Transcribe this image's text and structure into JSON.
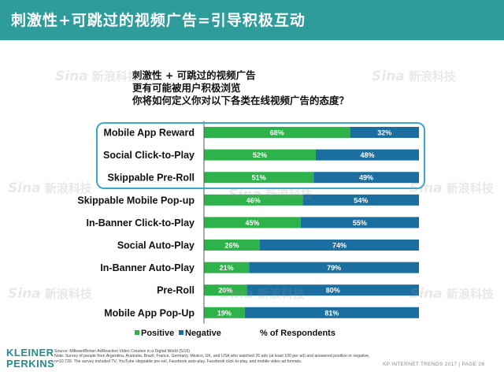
{
  "header": {
    "title": "刺激性+可跳过的视频广告=引导积极互动"
  },
  "question": {
    "lines": [
      "刺激性  +  可跳过的视频广告",
      "更有可能被用户积极浏览",
      "你将如何定义你对以下各类在线视频广告的态度？"
    ]
  },
  "chart_data": {
    "type": "bar",
    "orientation": "horizontal",
    "stacked": true,
    "categories": [
      "Mobile App Reward",
      "Social Click-to-Play",
      "Skippable Pre-Roll",
      "Skippable Mobile Pop-up",
      "In-Banner Click-to-Play",
      "Social Auto-Play",
      "In-Banner Auto-Play",
      "Pre-Roll",
      "Mobile App Pop-Up"
    ],
    "series": [
      {
        "name": "Positive",
        "color": "#2eb34a",
        "values": [
          68,
          52,
          51,
          46,
          45,
          26,
          21,
          20,
          19
        ],
        "labels": [
          "68%",
          "52%",
          "51%",
          "46%",
          "45%",
          "26%",
          "21%",
          "20%",
          "19%"
        ]
      },
      {
        "name": "Negative",
        "color": "#1a6fa0",
        "values": [
          32,
          48,
          49,
          54,
          55,
          74,
          79,
          80,
          81
        ],
        "labels": [
          "32%",
          "48%",
          "49%",
          "54%",
          "55%",
          "74%",
          "79%",
          "80%",
          "81%"
        ]
      }
    ],
    "xlabel": "% of Respondents",
    "xlim": [
      0,
      100
    ],
    "legend_position": "bottom",
    "highlighted_categories": [
      "Mobile App Reward",
      "Social Click-to-Play",
      "Skippable Pre-Roll"
    ]
  },
  "source": {
    "text": "Source: MillwardBrown AdReaction Video Creative in a Digital World (5/16)\nNote: Survey of people from Argentina, Australia, Brazil, France, Germany, Mexico, UK, and USA who watched 20 ads (at least 100 per ad) and answered positive or negative, n=10,739. The survey included TV, YouTube skippable pre-roll, Facebook auto-play, Facebook click-to-play, and mobile video ad formats."
  },
  "logo": {
    "line1": "KLEINER",
    "line2": "PERKINS"
  },
  "footer": {
    "text": "KP INTERNET TRENDS 2017   |   PAGE 26"
  },
  "watermark": {
    "logo": "Sina",
    "text": "新浪科技"
  }
}
